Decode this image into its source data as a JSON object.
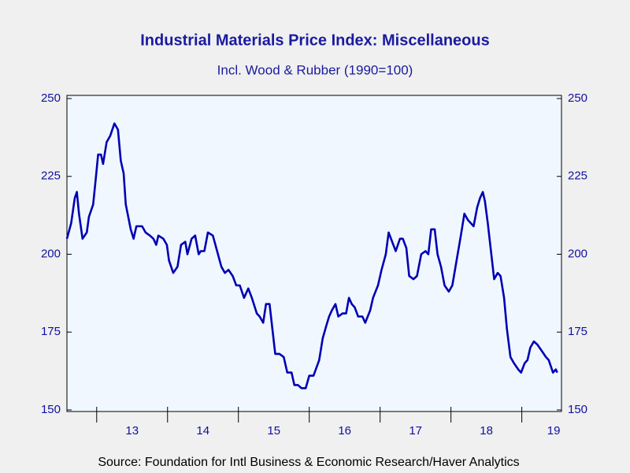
{
  "chart_data": {
    "type": "line",
    "title": "Industrial Materials Price Index: Miscellaneous",
    "subtitle": "Incl. Wood & Rubber (1990=100)",
    "source": "Source:  Foundation for Intl Business & Economic Research/Haver Analytics",
    "x": [
      2012.58,
      2012.64,
      2012.69,
      2012.72,
      2012.75,
      2012.8,
      2012.86,
      2012.89,
      2012.95,
      2012.99,
      2013.02,
      2013.06,
      2013.09,
      2013.14,
      2013.19,
      2013.25,
      2013.3,
      2013.34,
      2013.38,
      2013.41,
      2013.48,
      2013.52,
      2013.56,
      2013.64,
      2013.69,
      2013.75,
      2013.8,
      2013.84,
      2013.87,
      2013.94,
      2013.99,
      2014.02,
      2014.08,
      2014.14,
      2014.19,
      2014.25,
      2014.28,
      2014.34,
      2014.39,
      2014.44,
      2014.47,
      2014.52,
      2014.57,
      2014.64,
      2014.7,
      2014.76,
      2014.81,
      2014.86,
      2014.92,
      2014.97,
      2015.02,
      2015.08,
      2015.14,
      2015.19,
      2015.26,
      2015.3,
      2015.35,
      2015.39,
      2015.44,
      2015.48,
      2015.52,
      2015.58,
      2015.64,
      2015.69,
      2015.75,
      2015.79,
      2015.84,
      2015.89,
      2015.95,
      2016.0,
      2016.06,
      2016.14,
      2016.19,
      2016.24,
      2016.28,
      2016.32,
      2016.37,
      2016.41,
      2016.47,
      2016.52,
      2016.56,
      2016.6,
      2016.64,
      2016.69,
      2016.75,
      2016.79,
      2016.86,
      2016.9,
      2016.97,
      2017.02,
      2017.08,
      2017.12,
      2017.17,
      2017.22,
      2017.28,
      2017.32,
      2017.37,
      2017.41,
      2017.47,
      2017.52,
      2017.58,
      2017.64,
      2017.68,
      2017.72,
      2017.77,
      2017.81,
      2017.86,
      2017.91,
      2017.97,
      2018.02,
      2018.08,
      2018.14,
      2018.19,
      2018.24,
      2018.28,
      2018.32,
      2018.37,
      2018.41,
      2018.45,
      2018.48,
      2018.52,
      2018.57,
      2018.61,
      2018.66,
      2018.7,
      2018.75,
      2018.79,
      2018.84,
      2018.89,
      2018.95,
      2018.99,
      2019.04,
      2019.08,
      2019.12,
      2019.17,
      2019.22,
      2019.28,
      2019.34,
      2019.38,
      2019.44,
      2019.48,
      2019.5
    ],
    "series": [
      {
        "name": "Miscellaneous",
        "color": "#0000b4",
        "values": [
          205,
          210,
          218,
          220,
          213,
          205,
          207,
          212,
          216,
          225,
          232,
          232,
          229,
          236,
          238,
          242,
          240,
          230,
          226,
          216,
          208,
          205,
          209,
          209,
          207,
          206,
          205,
          203,
          206,
          205,
          203,
          198,
          194,
          196,
          203,
          204,
          200,
          205,
          206,
          200,
          201,
          201,
          207,
          206,
          201,
          196,
          194,
          195,
          193,
          190,
          190,
          186,
          189,
          186,
          181,
          180,
          178,
          184,
          184,
          176,
          168,
          168,
          167,
          162,
          162,
          158,
          158,
          157,
          157,
          161,
          161,
          166,
          173,
          177,
          180,
          182,
          184,
          180,
          181,
          181,
          186,
          184,
          183,
          180,
          180,
          178,
          182,
          186,
          190,
          195,
          200,
          207,
          204,
          201,
          205,
          205,
          202,
          193,
          192,
          193,
          200,
          201,
          200,
          208,
          208,
          200,
          196,
          190,
          188,
          190,
          198,
          206,
          213,
          211,
          210,
          209,
          215,
          218,
          220,
          217,
          210,
          200,
          192,
          194,
          193,
          186,
          176,
          167,
          165,
          163,
          162,
          165,
          166,
          170,
          172,
          171,
          169,
          167,
          166,
          162,
          163,
          162
        ]
      }
    ],
    "xlim": [
      2012.58,
      2019.56
    ],
    "xticks": [
      2013,
      2014,
      2015,
      2016,
      2017,
      2018,
      2019
    ],
    "xtick_labels": [
      {
        "value": 2013.5,
        "label": "13"
      },
      {
        "value": 2014.5,
        "label": "14"
      },
      {
        "value": 2015.5,
        "label": "15"
      },
      {
        "value": 2016.5,
        "label": "16"
      },
      {
        "value": 2017.5,
        "label": "17"
      },
      {
        "value": 2018.5,
        "label": "18"
      },
      {
        "value": 2019.45,
        "label": "19"
      }
    ],
    "ylim": [
      150,
      250
    ],
    "yticks": [
      150,
      175,
      200,
      225,
      250
    ],
    "y2lim": [
      150,
      250
    ],
    "y2ticks": [
      150,
      175,
      200,
      225,
      250
    ]
  }
}
